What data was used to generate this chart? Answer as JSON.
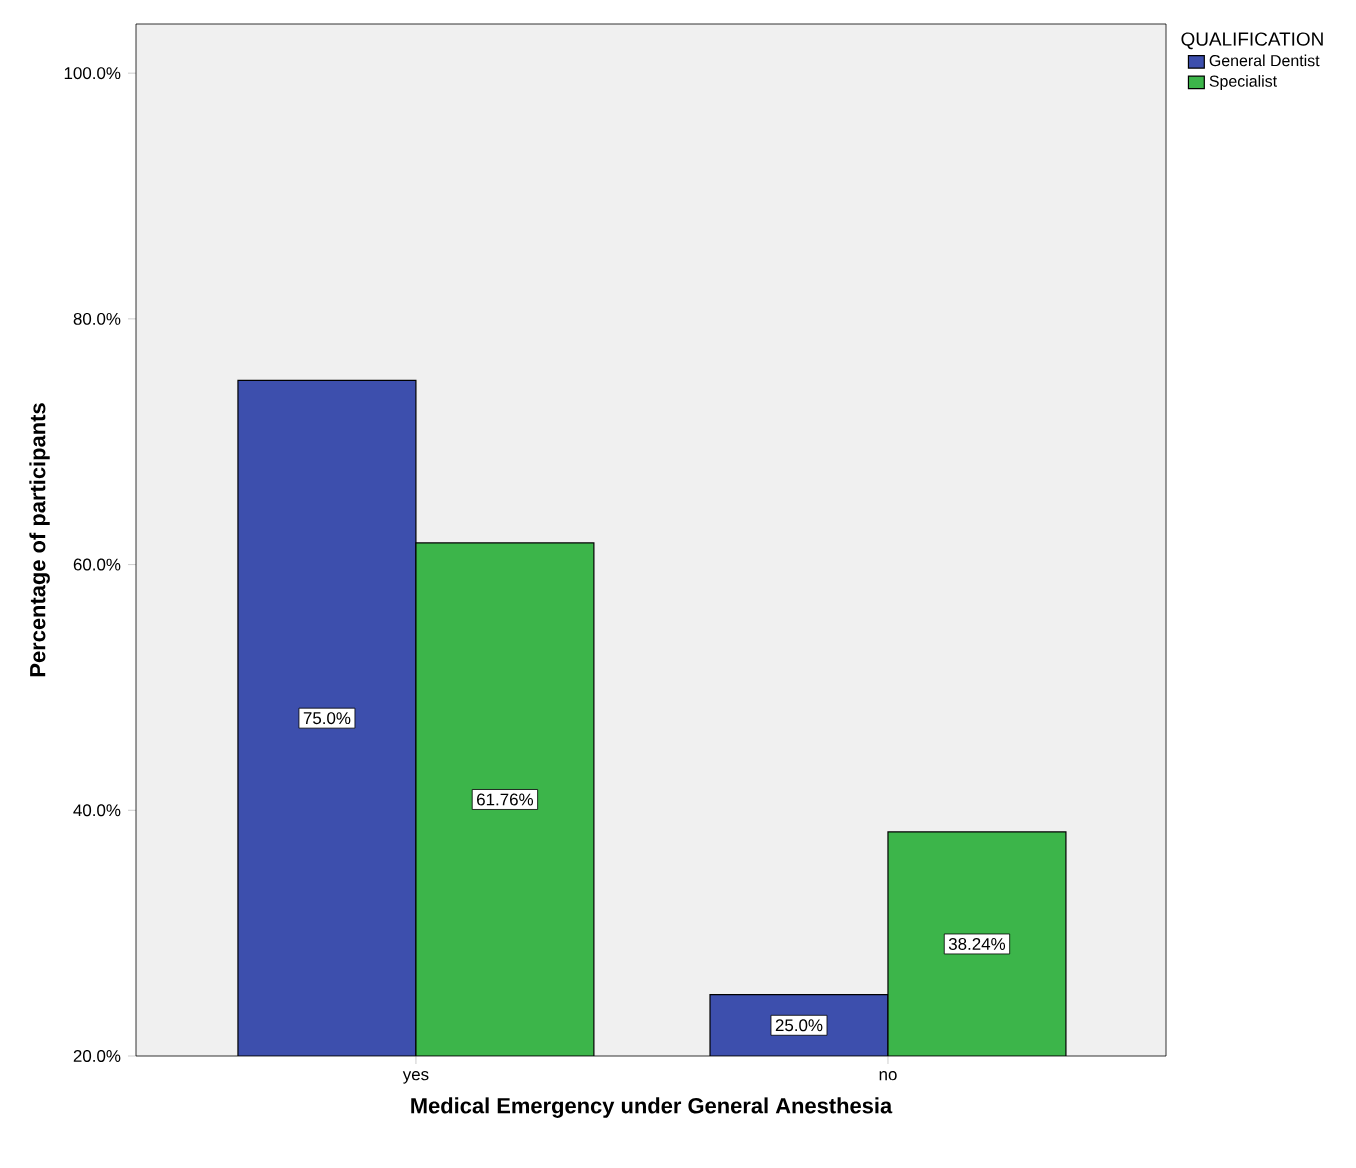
{
  "chart_data": {
    "type": "bar",
    "xlabel": "Medical Emergency under General Anesthesia",
    "ylabel": "Percentage of participants",
    "legend_title": "QUALIFICATION",
    "legend": "right",
    "categories": [
      "yes",
      "no"
    ],
    "series": [
      {
        "name": "General Dentist",
        "color": "#3d4fad",
        "values": [
          75.0,
          25.0
        ],
        "value_labels": [
          "75.0%",
          "25.0%"
        ]
      },
      {
        "name": "Specialist",
        "color": "#3cb54a",
        "values": [
          61.76,
          38.24
        ],
        "value_labels": [
          "61.76%",
          "38.24%"
        ]
      }
    ],
    "ylim": [
      20,
      104
    ],
    "yticks": [
      {
        "value": 20,
        "label": "20.0%"
      },
      {
        "value": 40,
        "label": "40.0%"
      },
      {
        "value": 60,
        "label": "60.0%"
      },
      {
        "value": 80,
        "label": "80.0%"
      },
      {
        "value": 100,
        "label": "100.0%"
      }
    ]
  }
}
